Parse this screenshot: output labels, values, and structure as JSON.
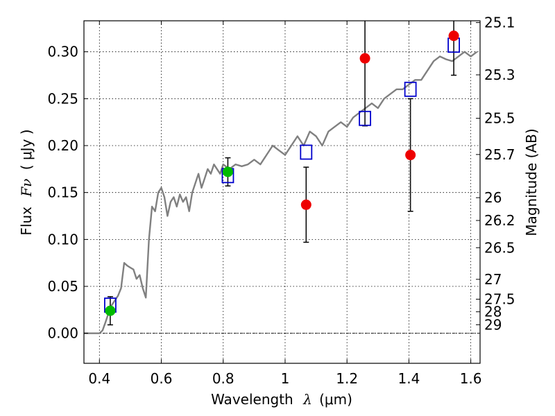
{
  "chart_data": {
    "type": "scatter",
    "xlabel_prefix": "Wavelength",
    "xlabel_symbol": "λ",
    "xlabel_unit": "(μm)",
    "ylabel_prefix": "Flux",
    "ylabel_symbol": "Fν",
    "ylabel_unit": "( μJy )",
    "y2label": "Magnitude (AB)",
    "xlim": [
      0.35,
      1.63
    ],
    "ylim": [
      -0.032,
      0.333
    ],
    "grid": true,
    "x_ticks": [
      {
        "value": 0.4,
        "label": "0.4"
      },
      {
        "value": 0.6,
        "label": "0.6"
      },
      {
        "value": 0.8,
        "label": "0.8"
      },
      {
        "value": 1.0,
        "label": "1"
      },
      {
        "value": 1.2,
        "label": "1.2"
      },
      {
        "value": 1.4,
        "label": "1.4"
      },
      {
        "value": 1.6,
        "label": "1.6"
      }
    ],
    "y_ticks": [
      {
        "value": 0.0,
        "label": "0.00"
      },
      {
        "value": 0.05,
        "label": "0.05"
      },
      {
        "value": 0.1,
        "label": "0.10"
      },
      {
        "value": 0.15,
        "label": "0.15"
      },
      {
        "value": 0.2,
        "label": "0.20"
      },
      {
        "value": 0.25,
        "label": "0.25"
      },
      {
        "value": 0.3,
        "label": "0.30"
      }
    ],
    "mag_ticks": [
      {
        "flux": 0.3311,
        "label": "25.1"
      },
      {
        "flux": 0.2754,
        "label": "25.3"
      },
      {
        "flux": 0.2291,
        "label": "25.5"
      },
      {
        "flux": 0.1905,
        "label": "25.7"
      },
      {
        "flux": 0.1445,
        "label": "26"
      },
      {
        "flux": 0.1202,
        "label": "26.2"
      },
      {
        "flux": 0.0912,
        "label": "26.5"
      },
      {
        "flux": 0.0575,
        "label": "27"
      },
      {
        "flux": 0.0363,
        "label": "27.5"
      },
      {
        "flux": 0.0229,
        "label": "28"
      },
      {
        "flux": 0.0091,
        "label": "29"
      }
    ],
    "model_spectrum": {
      "color": "#808080",
      "x": [
        0.35,
        0.4,
        0.41,
        0.42,
        0.43,
        0.44,
        0.45,
        0.46,
        0.47,
        0.48,
        0.49,
        0.5,
        0.51,
        0.52,
        0.53,
        0.54,
        0.55,
        0.56,
        0.57,
        0.58,
        0.59,
        0.6,
        0.61,
        0.62,
        0.63,
        0.64,
        0.65,
        0.66,
        0.67,
        0.68,
        0.69,
        0.7,
        0.71,
        0.72,
        0.73,
        0.74,
        0.75,
        0.76,
        0.77,
        0.78,
        0.79,
        0.8,
        0.82,
        0.84,
        0.86,
        0.88,
        0.9,
        0.92,
        0.94,
        0.96,
        0.98,
        1.0,
        1.02,
        1.04,
        1.06,
        1.08,
        1.1,
        1.12,
        1.14,
        1.16,
        1.18,
        1.2,
        1.22,
        1.24,
        1.26,
        1.28,
        1.3,
        1.32,
        1.34,
        1.36,
        1.38,
        1.4,
        1.42,
        1.44,
        1.46,
        1.48,
        1.5,
        1.52,
        1.54,
        1.56,
        1.58,
        1.6,
        1.62
      ],
      "y": [
        0.0,
        0.0,
        0.003,
        0.012,
        0.022,
        0.03,
        0.035,
        0.04,
        0.048,
        0.075,
        0.072,
        0.07,
        0.068,
        0.058,
        0.062,
        0.048,
        0.038,
        0.1,
        0.135,
        0.13,
        0.15,
        0.155,
        0.145,
        0.125,
        0.14,
        0.145,
        0.135,
        0.148,
        0.14,
        0.145,
        0.13,
        0.15,
        0.16,
        0.17,
        0.155,
        0.165,
        0.175,
        0.17,
        0.18,
        0.175,
        0.17,
        0.18,
        0.175,
        0.18,
        0.178,
        0.18,
        0.185,
        0.18,
        0.19,
        0.2,
        0.195,
        0.19,
        0.2,
        0.21,
        0.2,
        0.215,
        0.21,
        0.2,
        0.215,
        0.22,
        0.225,
        0.22,
        0.23,
        0.235,
        0.24,
        0.245,
        0.24,
        0.25,
        0.255,
        0.26,
        0.26,
        0.265,
        0.27,
        0.27,
        0.28,
        0.29,
        0.295,
        0.292,
        0.29,
        0.295,
        0.3,
        0.295,
        0.3
      ]
    },
    "model_points": {
      "color": "#0000cc",
      "x": [
        0.435,
        0.815,
        1.068,
        1.258,
        1.405,
        1.545
      ],
      "y": [
        0.03,
        0.168,
        0.193,
        0.229,
        0.26,
        0.307
      ]
    },
    "obs_green": {
      "color": "#00bb00",
      "x": [
        0.435,
        0.815
      ],
      "y": [
        0.024,
        0.172
      ],
      "err": [
        0.015,
        0.015
      ]
    },
    "obs_red": {
      "color": "#ee0000",
      "x": [
        1.068,
        1.258,
        1.405,
        1.545
      ],
      "y": [
        0.137,
        0.293,
        0.19,
        0.317
      ],
      "err": [
        0.04,
        0.072,
        0.06,
        0.042
      ]
    }
  }
}
